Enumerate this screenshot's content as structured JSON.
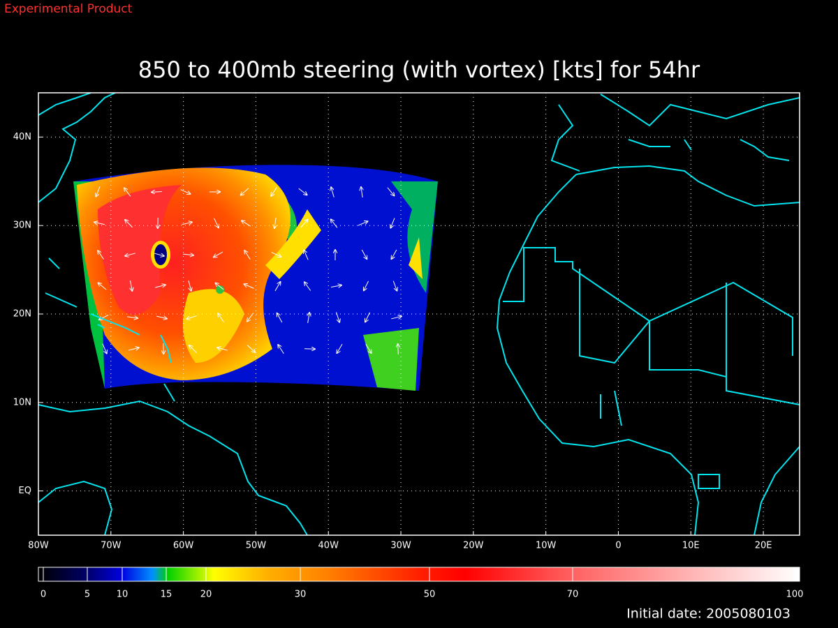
{
  "header": {
    "product": "Experimental Product",
    "title": "850 to 400mb steering (with vortex) [kts] for 54hr"
  },
  "map": {
    "xlim": [
      -80,
      25
    ],
    "ylim": [
      -5,
      45
    ],
    "xticks": [
      {
        "value": -80,
        "label": "80W"
      },
      {
        "value": -70,
        "label": "70W"
      },
      {
        "value": -60,
        "label": "60W"
      },
      {
        "value": -50,
        "label": "50W"
      },
      {
        "value": -40,
        "label": "40W"
      },
      {
        "value": -30,
        "label": "30W"
      },
      {
        "value": -20,
        "label": "20W"
      },
      {
        "value": -10,
        "label": "10W"
      },
      0,
      {
        "value": 10,
        "label": "10E"
      },
      {
        "value": 20,
        "label": "20E"
      }
    ],
    "yticks": [
      {
        "value": 0,
        "label": "EQ"
      },
      {
        "value": 10,
        "label": "10N"
      },
      {
        "value": 20,
        "label": "20N"
      },
      {
        "value": 30,
        "label": "30N"
      },
      {
        "value": 40,
        "label": "40N"
      }
    ]
  },
  "colorbar": {
    "labels": [
      0,
      5,
      10,
      15,
      20,
      30,
      50,
      70,
      100
    ]
  },
  "footer": {
    "initial_date": "Initial date: 2005080103"
  }
}
